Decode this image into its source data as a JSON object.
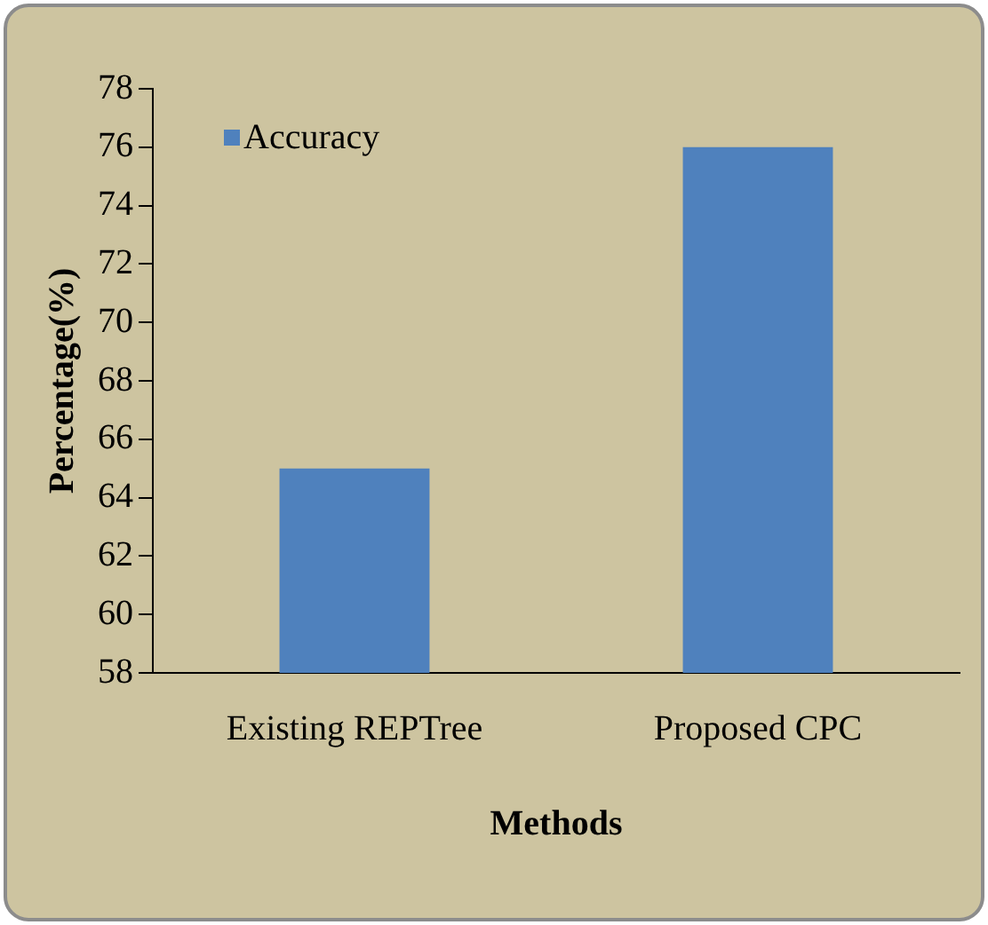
{
  "chart_data": {
    "type": "bar",
    "xlabel": "Methods",
    "ylabel": "Percentage(%)",
    "categories": [
      "Existing REPTree",
      "Proposed CPC"
    ],
    "series": [
      {
        "name": "Accuracy",
        "color": "#4f81bd",
        "values": [
          65,
          76
        ]
      }
    ],
    "ylim": [
      58,
      78
    ],
    "yticks": [
      58,
      60,
      62,
      64,
      66,
      68,
      70,
      72,
      74,
      76,
      78
    ],
    "grid": false,
    "legend": "top left"
  }
}
